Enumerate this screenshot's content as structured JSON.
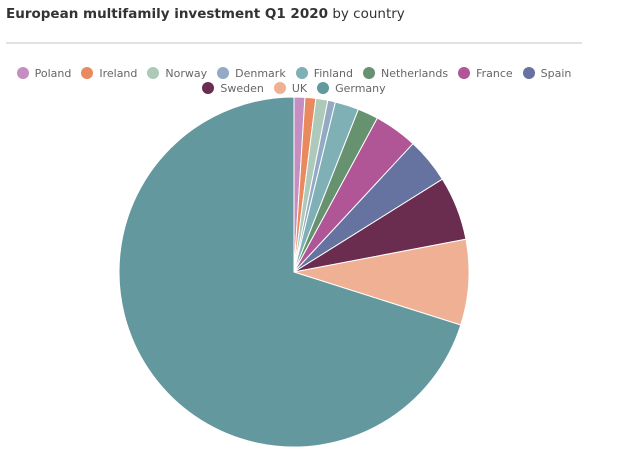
{
  "chart_data": {
    "type": "pie",
    "title_bold": "European multifamily investment Q1 2020",
    "title_rest": "by country",
    "legend_placement": "top",
    "slices": [
      {
        "name": "Poland",
        "value": 1.0,
        "color": "#c48fc0"
      },
      {
        "name": "Ireland",
        "value": 1.0,
        "color": "#e9895e"
      },
      {
        "name": "Norway",
        "value": 1.1,
        "color": "#adc9b9"
      },
      {
        "name": "Denmark",
        "value": 0.7,
        "color": "#93a9c4"
      },
      {
        "name": "Finland",
        "value": 2.2,
        "color": "#7eb0b6"
      },
      {
        "name": "Netherlands",
        "value": 1.9,
        "color": "#67926f"
      },
      {
        "name": "France",
        "value": 4.0,
        "color": "#b05596"
      },
      {
        "name": "Spain",
        "value": 4.2,
        "color": "#6672a0"
      },
      {
        "name": "Sweden",
        "value": 5.9,
        "color": "#6a2c4f"
      },
      {
        "name": "UK",
        "value": 7.9,
        "color": "#f0b094"
      },
      {
        "name": "Germany",
        "value": 70.1,
        "color": "#63989e"
      }
    ]
  }
}
